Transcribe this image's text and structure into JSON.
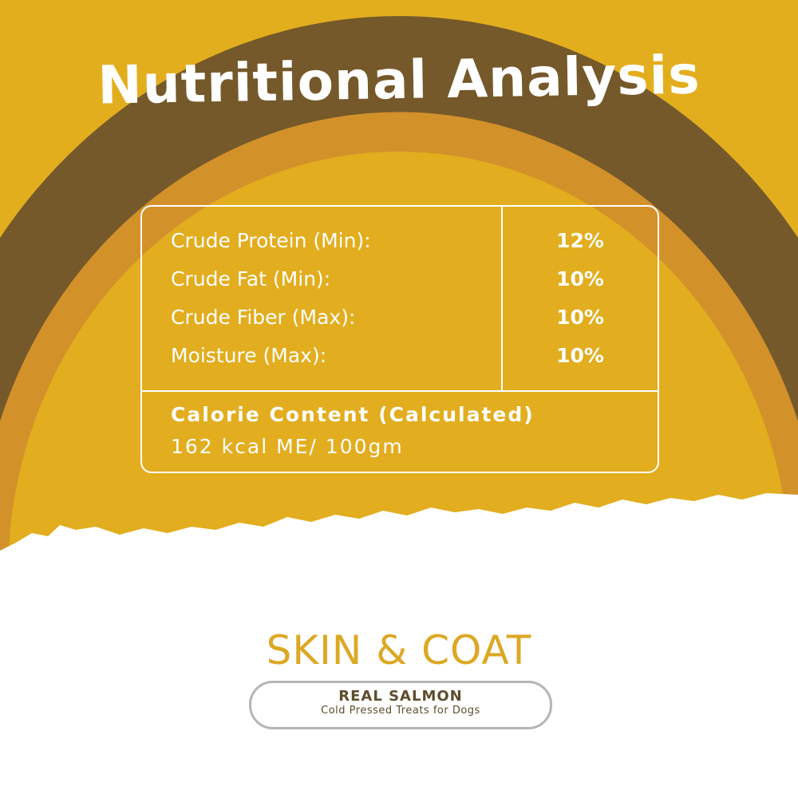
{
  "title": "Nutritional Analysis",
  "colors": {
    "background_yellow": "#E3AE1E",
    "arc_brown": "#75592A",
    "arc_orange": "#D3912A",
    "inner_yellow": "#E2AD1E",
    "headline_gold": "#DCA824",
    "text_brown": "#5E4D2C"
  },
  "analysis": [
    {
      "label": "Crude Protein (Min):",
      "value": "12%"
    },
    {
      "label": "Crude Fat (Min):",
      "value": "10%"
    },
    {
      "label": "Crude Fiber (Max):",
      "value": "10%"
    },
    {
      "label": "Moisture (Max):",
      "value": "10%"
    }
  ],
  "calorie": {
    "heading": "Calorie Content (Calculated)",
    "value": "162 kcal ME/ 100gm"
  },
  "benefit": "SKIN & COAT",
  "product": {
    "name": "REAL SALMON",
    "description": "Cold Pressed Treats for Dogs"
  }
}
